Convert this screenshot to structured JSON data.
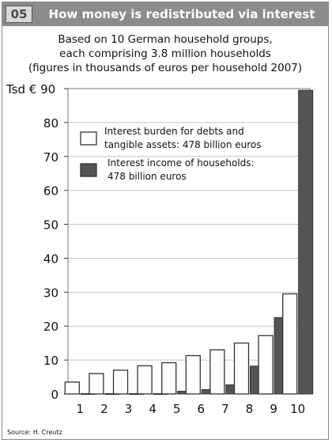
{
  "header": {
    "badge": "05",
    "title": "How money is redistributed via interest"
  },
  "subtitle_lines": [
    "Based on 10 German household groups,",
    "each comprising 3.8 million households",
    "(figures in thousands of euros per household 2007)"
  ],
  "source": "Source: H. Creutz",
  "colors": {
    "header_bg": "#8c8c8c",
    "income_bar": "#555555",
    "burden_bar": "#ffffff",
    "bar_stroke": "#333333"
  },
  "chart_data": {
    "type": "bar",
    "ylabel": "Tsd  € 90",
    "yticks": [
      0,
      10,
      20,
      30,
      40,
      50,
      60,
      70,
      80
    ],
    "ylim": [
      0,
      90
    ],
    "categories": [
      "1",
      "2",
      "3",
      "4",
      "5",
      "6",
      "7",
      "8",
      "9",
      "10"
    ],
    "grid": true,
    "legend_position": "upper-left",
    "series": [
      {
        "name_lines": [
          "Interest burden for debts and",
          "tangible assets: 478 billion euros"
        ],
        "style": "outline",
        "values": [
          3.5,
          6,
          7,
          8.3,
          9.2,
          11.3,
          13,
          15,
          17.2,
          29.5
        ]
      },
      {
        "name_lines": [
          "Interest income of households:",
          "478 billion euros"
        ],
        "style": "filled",
        "values": [
          0.1,
          0.1,
          0.1,
          0.1,
          0.8,
          1.3,
          2.7,
          8.2,
          22.5,
          89.5
        ]
      }
    ]
  }
}
